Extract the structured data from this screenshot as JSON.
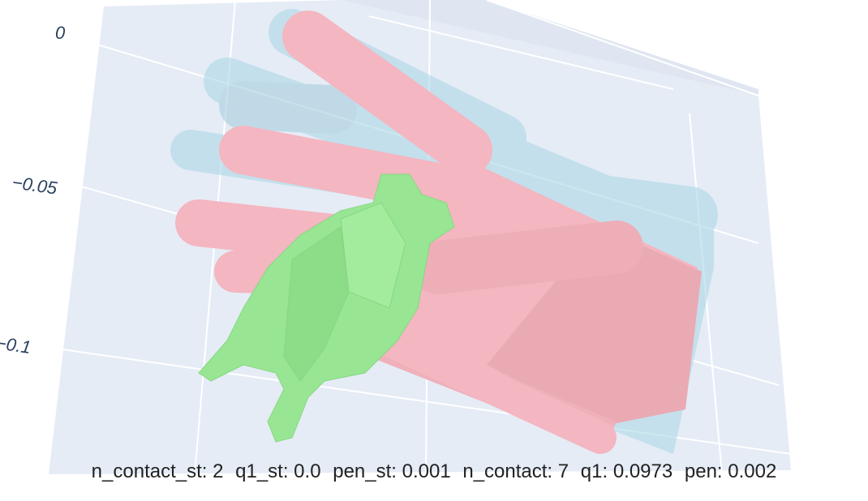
{
  "axes": {
    "z_ticks": [
      "0",
      "−0.05",
      "−0.1"
    ]
  },
  "colors": {
    "background": "#ffffff",
    "plot_bg": "#e5ecf6",
    "grid": "#ffffff",
    "hand_pred": "#f4b6c0",
    "hand_target": "#add8e6",
    "object": "#98e693"
  },
  "metrics": {
    "n_contact_st": "n_contact_st: 2",
    "q1_st": "q1_st: 0.0",
    "pen_st": "pen_st: 0.001",
    "n_contact": "n_contact: 7",
    "q1": "q1: 0.0973",
    "pen": "pen: 0.002"
  }
}
